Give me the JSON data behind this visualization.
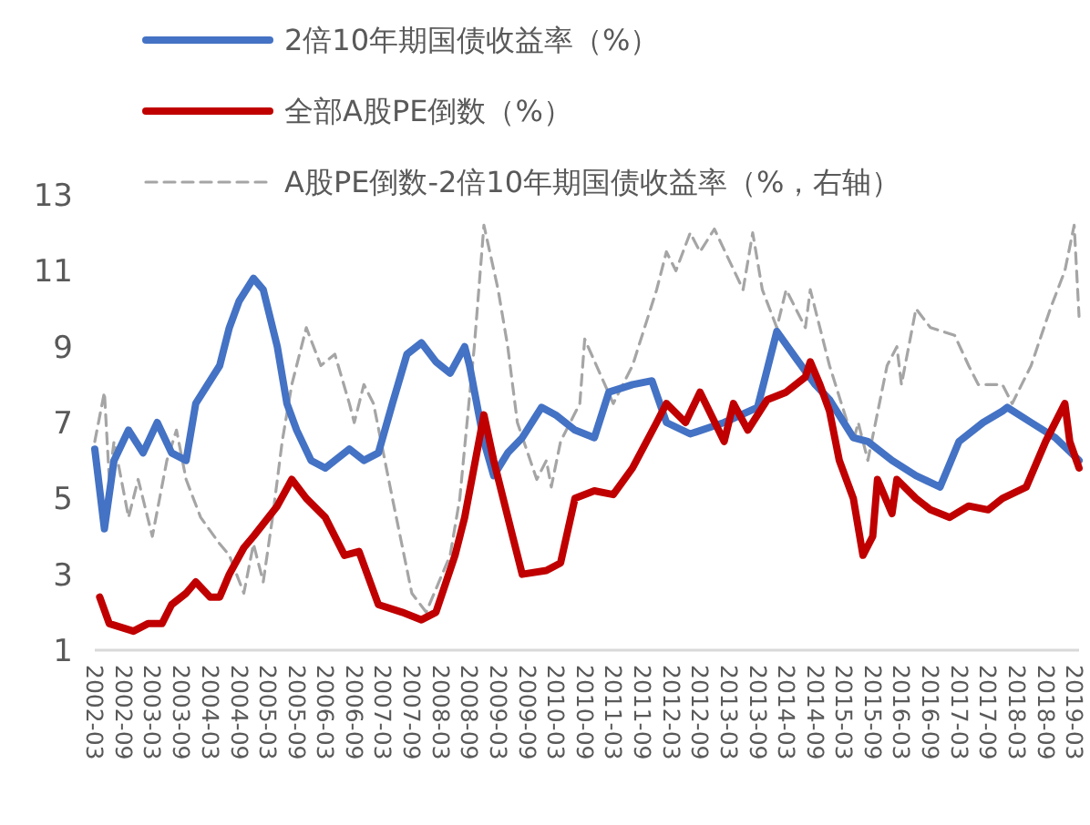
{
  "chart_data": {
    "type": "line",
    "legend": "top",
    "xlim": [
      "2002-03",
      "2019-04"
    ],
    "ylim": [
      1,
      13
    ],
    "yticks": [
      1,
      3,
      5,
      7,
      9,
      11,
      13
    ],
    "xticks": [
      "2002-03",
      "2002-09",
      "2003-03",
      "2003-09",
      "2004-03",
      "2004-09",
      "2005-03",
      "2005-09",
      "2006-03",
      "2006-09",
      "2007-03",
      "2007-09",
      "2008-03",
      "2008-09",
      "2009-03",
      "2009-09",
      "2010-03",
      "2010-09",
      "2011-03",
      "2011-09",
      "2012-03",
      "2012-09",
      "2013-03",
      "2013-09",
      "2014-03",
      "2014-09",
      "2015-03",
      "2015-09",
      "2016-03",
      "2016-09",
      "2017-03",
      "2017-09",
      "2018-03",
      "2018-09",
      "2019-03"
    ],
    "series": [
      {
        "name": "2倍10年期国债收益率（%）",
        "color": "#4472c4",
        "line_style": "solid",
        "x": [
          "2002-03",
          "2002-05",
          "2002-07",
          "2002-10",
          "2003-01",
          "2003-04",
          "2003-07",
          "2003-10",
          "2003-12",
          "2004-05",
          "2004-07",
          "2004-09",
          "2004-12",
          "2005-02",
          "2005-05",
          "2005-07",
          "2005-09",
          "2005-12",
          "2006-03",
          "2006-08",
          "2006-11",
          "2007-02",
          "2007-05",
          "2007-08",
          "2007-11",
          "2008-02",
          "2008-05",
          "2008-08",
          "2008-09",
          "2008-12",
          "2009-02",
          "2009-05",
          "2009-08",
          "2009-12",
          "2010-03",
          "2010-07",
          "2010-11",
          "2011-02",
          "2011-07",
          "2011-11",
          "2012-02",
          "2012-07",
          "2013-02",
          "2013-09",
          "2014-01",
          "2014-05",
          "2014-09",
          "2014-12",
          "2015-05",
          "2015-08",
          "2016-01",
          "2016-06",
          "2016-11",
          "2017-03",
          "2017-08",
          "2017-12",
          "2018-01",
          "2018-06",
          "2018-11",
          "2019-04"
        ],
        "values": [
          6.3,
          4.2,
          6.0,
          6.8,
          6.2,
          7.0,
          6.2,
          6.0,
          7.5,
          8.5,
          9.5,
          10.2,
          10.8,
          10.5,
          9.0,
          7.5,
          6.8,
          6.0,
          5.8,
          6.3,
          6.0,
          6.2,
          7.5,
          8.8,
          9.1,
          8.6,
          8.3,
          9.0,
          8.5,
          6.5,
          5.6,
          6.2,
          6.6,
          7.4,
          7.2,
          6.8,
          6.6,
          7.8,
          8.0,
          8.1,
          7.0,
          6.7,
          7.0,
          7.4,
          9.4,
          8.7,
          8.0,
          7.6,
          6.6,
          6.5,
          6.0,
          5.6,
          5.3,
          6.5,
          7.0,
          7.3,
          7.4,
          7.0,
          6.6,
          6.0
        ]
      },
      {
        "name": "全部A股PE倒数（%）",
        "color": "#c00000",
        "line_style": "solid",
        "x": [
          "2002-04",
          "2002-06",
          "2002-11",
          "2003-02",
          "2003-05",
          "2003-07",
          "2003-10",
          "2003-12",
          "2004-03",
          "2004-05",
          "2004-07",
          "2004-10",
          "2004-12",
          "2005-05",
          "2005-08",
          "2005-11",
          "2006-03",
          "2006-07",
          "2006-10",
          "2007-02",
          "2007-07",
          "2007-11",
          "2008-02",
          "2008-06",
          "2008-08",
          "2008-12",
          "2009-02",
          "2009-06",
          "2009-08",
          "2010-01",
          "2010-04",
          "2010-07",
          "2010-11",
          "2011-03",
          "2011-07",
          "2011-12",
          "2012-02",
          "2012-06",
          "2012-09",
          "2013-02",
          "2013-04",
          "2013-07",
          "2013-11",
          "2014-03",
          "2014-07",
          "2014-08",
          "2014-10",
          "2014-12",
          "2015-02",
          "2015-05",
          "2015-07",
          "2015-09",
          "2015-10",
          "2016-01",
          "2016-02",
          "2016-06",
          "2016-09",
          "2017-01",
          "2017-05",
          "2017-09",
          "2017-12",
          "2018-05",
          "2018-09",
          "2019-01",
          "2019-02",
          "2019-04"
        ],
        "values": [
          2.4,
          1.7,
          1.5,
          1.7,
          1.7,
          2.2,
          2.5,
          2.8,
          2.4,
          2.4,
          3.0,
          3.7,
          4.0,
          4.8,
          5.5,
          5.0,
          4.5,
          3.5,
          3.6,
          2.2,
          2.0,
          1.8,
          2.0,
          3.5,
          4.5,
          7.2,
          6.0,
          4.0,
          3.0,
          3.1,
          3.3,
          5.0,
          5.2,
          5.1,
          5.8,
          7.0,
          7.5,
          7.0,
          7.8,
          6.5,
          7.5,
          6.8,
          7.6,
          7.8,
          8.2,
          8.6,
          8.0,
          7.3,
          6.0,
          5.0,
          3.5,
          4.0,
          5.5,
          4.6,
          5.5,
          5.0,
          4.7,
          4.5,
          4.8,
          4.7,
          5.0,
          5.3,
          6.5,
          7.5,
          6.5,
          5.8
        ]
      },
      {
        "name": "A股PE倒数-2倍10年期国债收益率（%，右轴）",
        "color": "#a5a5a5",
        "line_style": "dashed",
        "x": [
          "2002-03",
          "2002-05",
          "2002-06",
          "2002-07",
          "2002-10",
          "2002-12",
          "2003-03",
          "2003-06",
          "2003-08",
          "2003-10",
          "2004-01",
          "2004-05",
          "2004-07",
          "2004-10",
          "2004-12",
          "2005-02",
          "2005-04",
          "2005-06",
          "2005-08",
          "2005-11",
          "2006-02",
          "2006-05",
          "2006-08",
          "2006-09",
          "2006-11",
          "2007-01",
          "2007-05",
          "2007-09",
          "2007-12",
          "2008-05",
          "2008-07",
          "2008-10",
          "2008-12",
          "2009-03",
          "2009-05",
          "2009-07",
          "2009-11",
          "2010-01",
          "2010-02",
          "2010-04",
          "2010-08",
          "2010-09",
          "2011-03",
          "2011-07",
          "2011-12",
          "2012-02",
          "2012-04",
          "2012-07",
          "2012-09",
          "2012-12",
          "2013-06",
          "2013-08",
          "2013-10",
          "2014-01",
          "2014-03",
          "2014-07",
          "2014-08",
          "2014-12",
          "2015-05",
          "2015-06",
          "2015-08",
          "2015-12",
          "2016-02",
          "2016-03",
          "2016-06",
          "2016-09",
          "2017-02",
          "2017-05",
          "2017-07",
          "2017-12",
          "2018-02",
          "2018-06",
          "2018-10",
          "2019-01",
          "2019-03",
          "2019-04"
        ],
        "values": [
          6.5,
          7.8,
          5.5,
          6.5,
          4.5,
          5.5,
          4.0,
          6.0,
          6.8,
          5.5,
          4.5,
          3.8,
          3.5,
          2.5,
          3.8,
          2.8,
          4.5,
          6.5,
          8.0,
          9.5,
          8.5,
          8.8,
          7.5,
          7.0,
          8.0,
          7.5,
          5.0,
          2.5,
          2.0,
          3.5,
          5.0,
          9.0,
          12.2,
          10.5,
          9.0,
          7.0,
          5.5,
          6.0,
          5.3,
          6.5,
          7.5,
          9.2,
          7.5,
          8.5,
          10.5,
          11.5,
          11.0,
          12.0,
          11.5,
          12.1,
          10.5,
          12.0,
          10.5,
          9.5,
          10.5,
          9.5,
          10.5,
          8.5,
          6.5,
          7.0,
          6.0,
          8.5,
          9.0,
          8.0,
          10.0,
          9.5,
          9.3,
          8.5,
          8.0,
          8.0,
          7.5,
          8.5,
          10.0,
          11.0,
          12.2,
          9.8
        ]
      }
    ]
  }
}
